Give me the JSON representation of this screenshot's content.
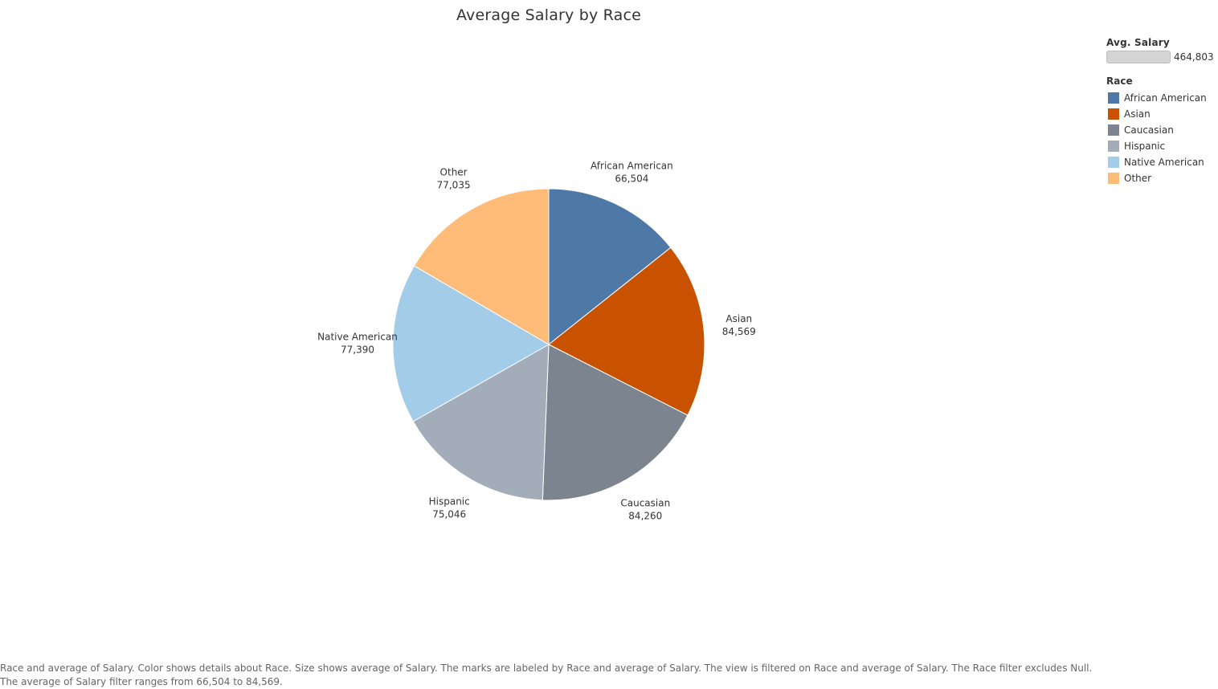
{
  "chart_data": {
    "type": "pie",
    "title": "Average Salary by Race",
    "categories": [
      "African American",
      "Asian",
      "Caucasian",
      "Hispanic",
      "Native American",
      "Other"
    ],
    "values": [
      66504,
      84569,
      84260,
      75046,
      77390,
      77035
    ],
    "value_labels": [
      "66,504",
      "84,569",
      "84,260",
      "75,046",
      "77,390",
      "77,035"
    ],
    "colors": [
      "#4e79a7",
      "#c85200",
      "#7b848f",
      "#a3acb9",
      "#a3cce9",
      "#ffbc79"
    ],
    "legend_placement": "right",
    "grid": false
  },
  "legend": {
    "size_title": "Avg. Salary",
    "size_value": "464,803",
    "color_title": "Race",
    "items": [
      {
        "label": "African American",
        "color": "#4e79a7"
      },
      {
        "label": "Asian",
        "color": "#c85200"
      },
      {
        "label": "Caucasian",
        "color": "#7b848f"
      },
      {
        "label": "Hispanic",
        "color": "#a3acb9"
      },
      {
        "label": "Native American",
        "color": "#a3cce9"
      },
      {
        "label": "Other",
        "color": "#ffbc79"
      }
    ]
  },
  "caption": "Race and average of Salary.  Color shows details about Race.  Size shows average of Salary.  The marks are labeled by Race and average of Salary. The view is filtered on Race and average of Salary. The Race filter excludes Null. The average of Salary filter ranges from 66,504 to 84,569."
}
